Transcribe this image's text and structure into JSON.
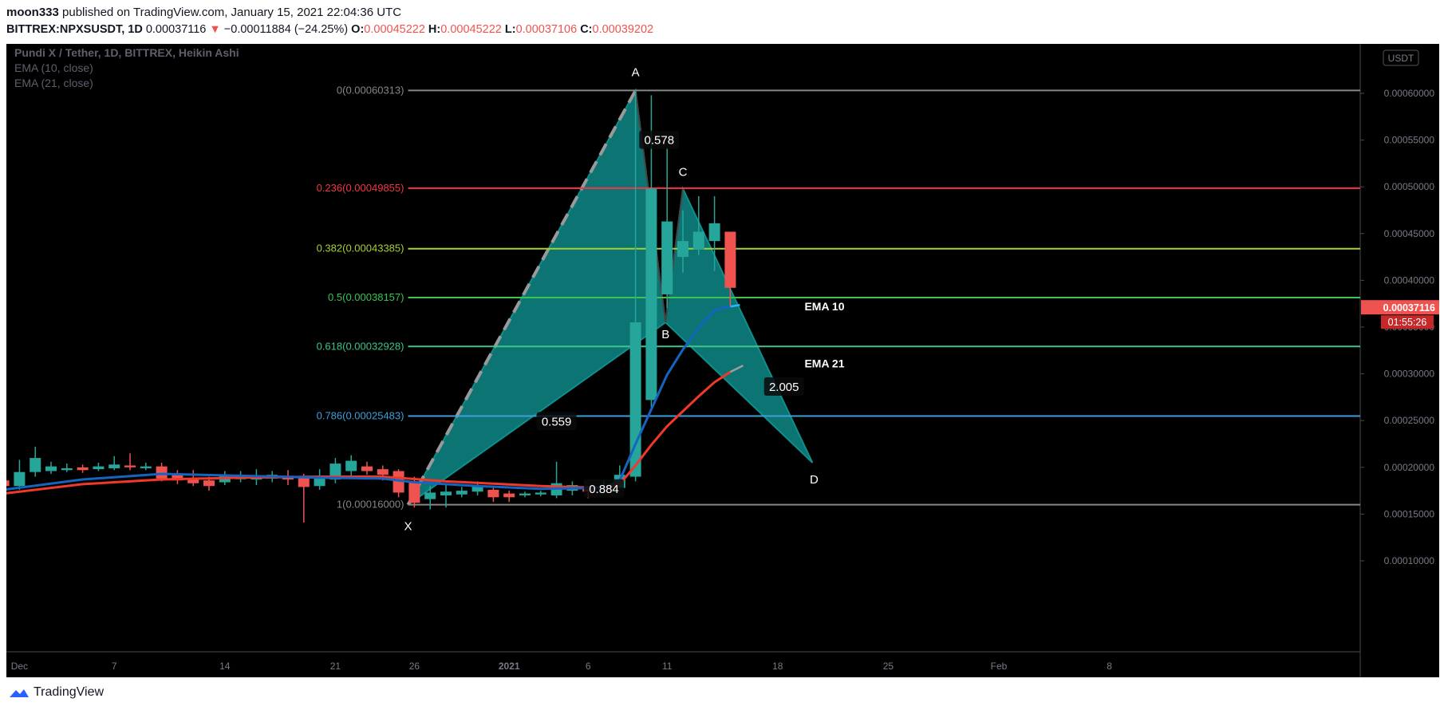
{
  "header": {
    "author": "moon333",
    "published_text": "published on TradingView.com, January 15, 2021 22:04:36 UTC",
    "symbol": "BITTREX:NPXSUSDT, 1D",
    "last": "0.00037116",
    "change": "−0.00011884 (−24.25%)",
    "o_label": "O:",
    "o": "0.00045222",
    "h_label": "H:",
    "h": "0.00045222",
    "l_label": "L:",
    "l": "0.00037106",
    "c_label": "C:",
    "c": "0.00039202"
  },
  "legend": {
    "title": "Pundi X / Tether, 1D, BITTREX, Heikin Ashi",
    "ema10": "EMA (10, close)",
    "ema21": "EMA (21, close)"
  },
  "footer": {
    "brand": "TradingView"
  },
  "colors": {
    "background": "#000000",
    "up": "#26a69a",
    "down": "#ef5350",
    "pattern_fill": "#0f8f8c",
    "ema10": "#1565c0",
    "ema21": "#f0382b"
  },
  "chart_data": {
    "type": "candlestick",
    "title": "Pundi X / Tether, 1D, BITTREX, Heikin Ashi",
    "price_scale_unit": "USDT",
    "ylim": [
      0.0001,
      0.00062
    ],
    "y_ticks": [
      "0.00060000",
      "0.00055000",
      "0.00050000",
      "0.00045000",
      "0.00040000",
      "0.00035000",
      "0.00030000",
      "0.00025000",
      "0.00020000",
      "0.00015000",
      "0.00010000"
    ],
    "y_tick_values": [
      0.0006,
      0.00055,
      0.0005,
      0.00045,
      0.0004,
      0.00035,
      0.0003,
      0.00025,
      0.0002,
      0.00015,
      0.0001
    ],
    "x_ticks": [
      {
        "label": "Dec",
        "day": 1
      },
      {
        "label": "7",
        "day": 7
      },
      {
        "label": "14",
        "day": 14
      },
      {
        "label": "21",
        "day": 21
      },
      {
        "label": "26",
        "day": 26
      },
      {
        "label": "2021",
        "day": 32
      },
      {
        "label": "6",
        "day": 37
      },
      {
        "label": "11",
        "day": 42
      },
      {
        "label": "18",
        "day": 49
      },
      {
        "label": "25",
        "day": 56
      },
      {
        "label": "Feb",
        "day": 63
      },
      {
        "label": "8",
        "day": 70
      }
    ],
    "x_axis_note": "x values are calendar days counted from Dec 1 = 1",
    "candles": [
      {
        "d": 0,
        "o": 0.000186,
        "c": 0.00018,
        "h": 0.00019,
        "l": 0.000175
      },
      {
        "d": 1,
        "o": 0.00018,
        "c": 0.000195,
        "h": 0.000208,
        "l": 0.000176
      },
      {
        "d": 2,
        "o": 0.000195,
        "c": 0.00021,
        "h": 0.000222,
        "l": 0.00019
      },
      {
        "d": 3,
        "o": 0.000196,
        "c": 0.000201,
        "h": 0.000206,
        "l": 0.000193
      },
      {
        "d": 4,
        "o": 0.000197,
        "c": 0.000199,
        "h": 0.000204,
        "l": 0.000195
      },
      {
        "d": 5,
        "o": 0.0002,
        "c": 0.000197,
        "h": 0.000203,
        "l": 0.000194
      },
      {
        "d": 6,
        "o": 0.000198,
        "c": 0.000201,
        "h": 0.000205,
        "l": 0.000196
      },
      {
        "d": 7,
        "o": 0.000199,
        "c": 0.000203,
        "h": 0.000212,
        "l": 0.000197
      },
      {
        "d": 8,
        "o": 0.000202,
        "c": 0.0002,
        "h": 0.000215,
        "l": 0.000197
      },
      {
        "d": 9,
        "o": 0.000199,
        "c": 0.000201,
        "h": 0.000205,
        "l": 0.000197
      },
      {
        "d": 10,
        "o": 0.000201,
        "c": 0.000188,
        "h": 0.000205,
        "l": 0.000185
      },
      {
        "d": 11,
        "o": 0.000193,
        "c": 0.000186,
        "h": 0.000197,
        "l": 0.000182
      },
      {
        "d": 12,
        "o": 0.000188,
        "c": 0.000183,
        "h": 0.000197,
        "l": 0.00018
      },
      {
        "d": 13,
        "o": 0.000186,
        "c": 0.00018,
        "h": 0.00019,
        "l": 0.000175
      },
      {
        "d": 14,
        "o": 0.000184,
        "c": 0.000191,
        "h": 0.000196,
        "l": 0.000181
      },
      {
        "d": 15,
        "o": 0.000188,
        "c": 0.000189,
        "h": 0.000196,
        "l": 0.000184
      },
      {
        "d": 16,
        "o": 0.000187,
        "c": 0.000189,
        "h": 0.000198,
        "l": 0.000181
      },
      {
        "d": 17,
        "o": 0.000188,
        "c": 0.000192,
        "h": 0.000196,
        "l": 0.000184
      },
      {
        "d": 18,
        "o": 0.000191,
        "c": 0.000187,
        "h": 0.000197,
        "l": 0.000181
      },
      {
        "d": 19,
        "o": 0.000189,
        "c": 0.000179,
        "h": 0.000193,
        "l": 0.000141
      },
      {
        "d": 20,
        "o": 0.00018,
        "c": 0.000188,
        "h": 0.000198,
        "l": 0.000176
      },
      {
        "d": 21,
        "o": 0.000187,
        "c": 0.000204,
        "h": 0.00021,
        "l": 0.000183
      },
      {
        "d": 22,
        "o": 0.000196,
        "c": 0.000207,
        "h": 0.000213,
        "l": 0.000191
      },
      {
        "d": 23,
        "o": 0.000201,
        "c": 0.000196,
        "h": 0.000206,
        "l": 0.000192
      },
      {
        "d": 24,
        "o": 0.000198,
        "c": 0.000192,
        "h": 0.000202,
        "l": 0.000186
      },
      {
        "d": 25,
        "o": 0.000196,
        "c": 0.000173,
        "h": 0.000198,
        "l": 0.000168
      },
      {
        "d": 26,
        "o": 0.000185,
        "c": 0.000162,
        "h": 0.00019,
        "l": 0.000157
      },
      {
        "d": 27,
        "o": 0.000166,
        "c": 0.000173,
        "h": 0.00018,
        "l": 0.000155
      },
      {
        "d": 28,
        "o": 0.00017,
        "c": 0.000174,
        "h": 0.000182,
        "l": 0.000157
      },
      {
        "d": 29,
        "o": 0.000171,
        "c": 0.000175,
        "h": 0.000179,
        "l": 0.000168
      },
      {
        "d": 30,
        "o": 0.000174,
        "c": 0.000181,
        "h": 0.000185,
        "l": 0.00017
      },
      {
        "d": 31,
        "o": 0.000176,
        "c": 0.000168,
        "h": 0.000179,
        "l": 0.000163
      },
      {
        "d": 32,
        "o": 0.000172,
        "c": 0.000168,
        "h": 0.000175,
        "l": 0.000163
      },
      {
        "d": 33,
        "o": 0.00017,
        "c": 0.000172,
        "h": 0.000174,
        "l": 0.000168
      },
      {
        "d": 34,
        "o": 0.000171,
        "c": 0.000173,
        "h": 0.000175,
        "l": 0.000169
      },
      {
        "d": 35,
        "o": 0.00017,
        "c": 0.000183,
        "h": 0.000206,
        "l": 0.000167
      },
      {
        "d": 36,
        "o": 0.000175,
        "c": 0.000181,
        "h": 0.000185,
        "l": 0.00017
      },
      {
        "d": 37,
        "o": 0.000177,
        "c": 0.000174,
        "h": 0.00018,
        "l": 0.000167
      },
      {
        "d": 38,
        "o": 0.000177,
        "c": 0.000179,
        "h": 0.000186,
        "l": 0.000172
      },
      {
        "d": 39,
        "o": 0.000178,
        "c": 0.000192,
        "h": 0.000202,
        "l": 0.000178
      },
      {
        "d": 40,
        "o": 0.00019,
        "c": 0.000355,
        "h": 0.000602,
        "l": 0.000185
      },
      {
        "d": 41,
        "o": 0.000272,
        "c": 0.000498,
        "h": 0.000598,
        "l": 0.00026
      },
      {
        "d": 42,
        "o": 0.000385,
        "c": 0.000463,
        "h": 0.000542,
        "l": 0.00037
      },
      {
        "d": 43,
        "o": 0.000425,
        "c": 0.000442,
        "h": 0.000475,
        "l": 0.000408
      },
      {
        "d": 44,
        "o": 0.000433,
        "c": 0.000452,
        "h": 0.00049,
        "l": 0.000427
      },
      {
        "d": 45,
        "o": 0.000442,
        "c": 0.000461,
        "h": 0.00049,
        "l": 0.00041
      },
      {
        "d": 46,
        "o": 0.000452,
        "c": 0.000392,
        "h": 0.000452,
        "l": 0.000371
      }
    ],
    "ema10": [
      [
        0,
        0.000176
      ],
      [
        5,
        0.000187
      ],
      [
        10,
        0.000193
      ],
      [
        15,
        0.000191
      ],
      [
        20,
        0.000189
      ],
      [
        24,
        0.000188
      ],
      [
        26,
        0.000184
      ],
      [
        30,
        0.00018
      ],
      [
        34,
        0.000177
      ],
      [
        38,
        0.000178
      ],
      [
        39,
        0.000186
      ],
      [
        40,
        0.000225
      ],
      [
        41,
        0.000262
      ],
      [
        42,
        0.000299
      ],
      [
        43,
        0.000326
      ],
      [
        44,
        0.000349
      ],
      [
        45,
        0.000368
      ],
      [
        46,
        0.000372
      ]
    ],
    "ema21": [
      [
        0,
        0.000172
      ],
      [
        5,
        0.000182
      ],
      [
        10,
        0.000187
      ],
      [
        15,
        0.000189
      ],
      [
        20,
        0.00019
      ],
      [
        24,
        0.00019
      ],
      [
        28,
        0.000185
      ],
      [
        34,
        0.00018
      ],
      [
        38,
        0.000178
      ],
      [
        39,
        0.000182
      ],
      [
        40,
        0.000202
      ],
      [
        41,
        0.000224
      ],
      [
        42,
        0.000244
      ],
      [
        43,
        0.00026
      ],
      [
        44,
        0.000276
      ],
      [
        45,
        0.000291
      ],
      [
        46,
        0.000302
      ]
    ],
    "fib_levels": [
      {
        "label": "0(0.00060313)",
        "value": 0.00060313,
        "color": "#868686"
      },
      {
        "label": "0.236(0.00049855)",
        "value": 0.00049855,
        "color": "#f23645"
      },
      {
        "label": "0.382(0.00043385)",
        "value": 0.00043385,
        "color": "#a5d133"
      },
      {
        "label": "0.5(0.00038157)",
        "value": 0.00038157,
        "color": "#39c455"
      },
      {
        "label": "0.618(0.00032928)",
        "value": 0.00032928,
        "color": "#3fc48a"
      },
      {
        "label": "0.786(0.00025483)",
        "value": 0.00025483,
        "color": "#3d9fd9"
      },
      {
        "label": "1(0.00016000)",
        "value": 0.00016,
        "color": "#868686"
      }
    ],
    "pattern_points": [
      {
        "label": "X",
        "day": 25.6,
        "price": 0.00016
      },
      {
        "label": "A",
        "day": 40.0,
        "price": 0.000603
      },
      {
        "label": "B",
        "day": 41.9,
        "price": 0.000355
      },
      {
        "label": "C",
        "day": 43.0,
        "price": 0.000498
      },
      {
        "label": "D",
        "day": 51.2,
        "price": 0.000205
      }
    ],
    "ratios": [
      {
        "label": "0.578",
        "day": 41.5,
        "price": 0.00055
      },
      {
        "label": "0.559",
        "day": 35.0,
        "price": 0.000249
      },
      {
        "label": "0.884",
        "day": 38.0,
        "price": 0.000177
      },
      {
        "label": "2.005",
        "day": 49.4,
        "price": 0.000286
      }
    ],
    "ema_labels": [
      {
        "label": "EMA 10",
        "day": 50.7,
        "price": 0.000372
      },
      {
        "label": "EMA 21",
        "day": 50.7,
        "price": 0.000311
      }
    ],
    "last_price_label": "0.00037116",
    "last_price": 0.00037116,
    "countdown": "01:55:26"
  }
}
